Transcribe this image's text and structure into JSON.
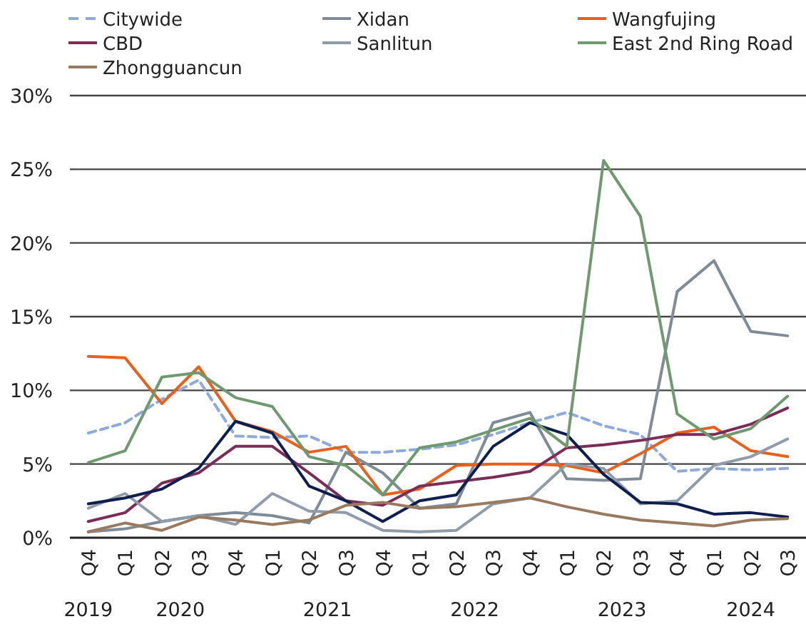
{
  "chart_data": {
    "type": "line",
    "categories": [
      "Q4",
      "Q1",
      "Q2",
      "Q3",
      "Q4",
      "Q1",
      "Q2",
      "Q3",
      "Q4",
      "Q1",
      "Q2",
      "Q3",
      "Q4",
      "Q1",
      "Q2",
      "Q3",
      "Q4",
      "Q1",
      "Q2",
      "Q3"
    ],
    "series": [
      {
        "name": "Citywide",
        "color": "#8eaadb",
        "line_style": "dashed",
        "values": [
          7.1,
          7.8,
          9.4,
          10.7,
          6.9,
          6.8,
          6.9,
          5.8,
          5.8,
          6.0,
          6.3,
          7.0,
          7.8,
          8.5,
          7.6,
          7.0,
          4.5,
          4.7,
          4.6,
          4.7
        ]
      },
      {
        "name": "Xidan",
        "color": "#7f8b96",
        "values": [
          0.4,
          0.6,
          1.1,
          1.5,
          1.7,
          1.5,
          1.0,
          5.8,
          4.4,
          2.0,
          2.3,
          7.8,
          8.5,
          4.0,
          3.9,
          4.0,
          16.7,
          18.8,
          14.0,
          13.7
        ]
      },
      {
        "name": "Wangfujing",
        "color": "#e8601c",
        "values": [
          12.3,
          12.2,
          9.1,
          11.6,
          7.9,
          7.2,
          5.8,
          6.2,
          2.9,
          3.3,
          4.9,
          5.0,
          5.0,
          4.9,
          4.4,
          5.7,
          7.1,
          7.5,
          5.9,
          5.5
        ]
      },
      {
        "name": "CBD",
        "color": "#7b2d55",
        "values": [
          1.1,
          1.7,
          3.7,
          4.4,
          6.2,
          6.2,
          4.4,
          2.5,
          2.2,
          3.5,
          3.8,
          4.1,
          4.5,
          6.1,
          6.3,
          6.6,
          7.0,
          7.0,
          7.7,
          8.8
        ]
      },
      {
        "name": "Sanlitun",
        "color": "#8f9caa",
        "values": [
          2.0,
          3.0,
          1.1,
          1.5,
          0.9,
          3.0,
          1.8,
          1.7,
          0.5,
          0.4,
          0.5,
          2.3,
          2.7,
          5.0,
          4.7,
          2.3,
          2.5,
          4.9,
          5.5,
          6.7
        ]
      },
      {
        "color": "#0e1f4f",
        "values": [
          2.3,
          2.7,
          3.3,
          4.7,
          7.9,
          7.1,
          3.5,
          2.5,
          1.1,
          2.5,
          2.9,
          6.2,
          7.8,
          7.0,
          4.3,
          2.4,
          2.3,
          1.6,
          1.7,
          1.4
        ]
      },
      {
        "name": "East 2nd Ring Road",
        "color": "#6f9a6f",
        "values": [
          5.1,
          5.9,
          10.9,
          11.2,
          9.5,
          8.9,
          5.5,
          4.9,
          2.9,
          6.1,
          6.5,
          7.3,
          8.1,
          6.2,
          25.6,
          21.8,
          8.4,
          6.7,
          7.4,
          9.6
        ]
      },
      {
        "name": "Zhongguancun",
        "color": "#9a7a5e",
        "values": [
          0.4,
          1.0,
          0.5,
          1.4,
          1.2,
          0.9,
          1.2,
          2.2,
          2.4,
          2.0,
          2.1,
          2.4,
          2.7,
          2.1,
          1.6,
          1.2,
          1.0,
          0.8,
          1.2,
          1.3
        ]
      }
    ],
    "ylim": [
      0,
      30
    ],
    "yticks": [
      {
        "value": 0,
        "label": "0%"
      },
      {
        "value": 5,
        "label": "5%"
      },
      {
        "value": 10,
        "label": "10%"
      },
      {
        "value": 15,
        "label": "15%"
      },
      {
        "value": 20,
        "label": "20%"
      },
      {
        "value": 25,
        "label": "25%"
      },
      {
        "value": 30,
        "label": "30%"
      }
    ],
    "annotations": [
      "2019",
      "2020",
      "2021",
      "2022",
      "2023",
      "2024"
    ],
    "grid": "y",
    "legend": "top",
    "marker": "none"
  }
}
